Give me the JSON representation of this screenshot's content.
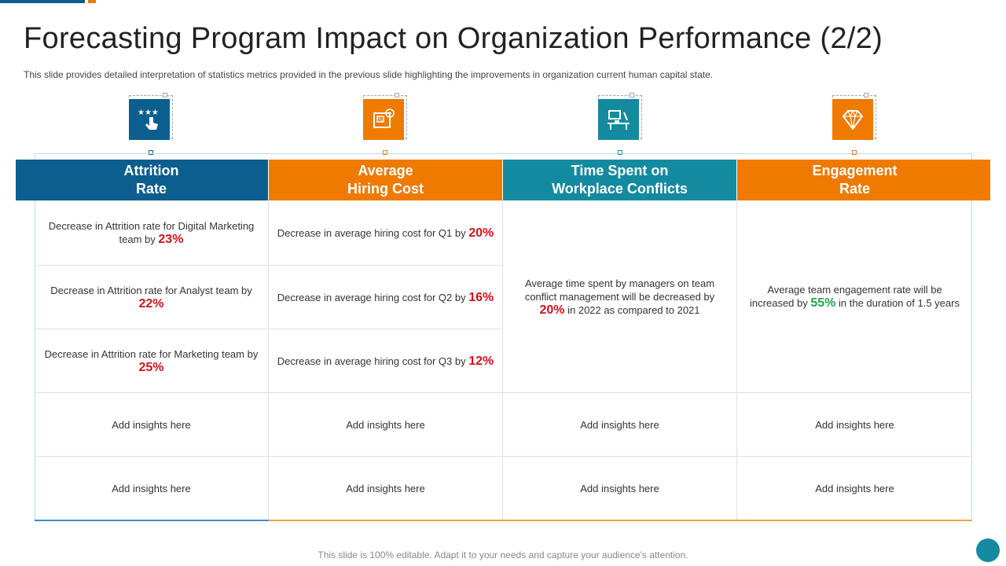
{
  "colors": {
    "blue": "#0b5e8e",
    "orange": "#ee7a00",
    "teal": "#138a9f",
    "red": "#d0121b",
    "green": "#23a24d"
  },
  "page": {
    "title": "Forecasting Program Impact on Organization Performance (2/2)",
    "subtitle": "This slide provides  detailed interpretation  of statistics metrics provided  in the previous  slide highlighting  the improvements  in organization  current  human capital state.",
    "footer": "This slide is 100%  editable. Adapt it to your needs and capture your audience's attention."
  },
  "columns": [
    {
      "header": "Attrition\nRate",
      "icon": "star-rating-hand-icon",
      "color": "#0b5e8e"
    },
    {
      "header": "Average\nHiring Cost",
      "icon": "cost-document-icon",
      "color": "#ee7a00"
    },
    {
      "header": "Time Spent on\nWorkplace Conflicts",
      "icon": "workplace-desk-icon",
      "color": "#138a9f"
    },
    {
      "header": "Engagement\nRate",
      "icon": "diamond-icon",
      "color": "#ee7a00"
    }
  ],
  "attrition": [
    {
      "text": "Decrease in Attrition rate for Digital Marketing team by ",
      "pct": "23%"
    },
    {
      "text": "Decrease in Attrition rate for Analyst team by ",
      "pct": "22%"
    },
    {
      "text": "Decrease in Attrition rate for Marketing team by ",
      "pct": "25%"
    }
  ],
  "hiring": [
    {
      "text": "Decrease in average  hiring cost for Q1 by ",
      "pct": "20%"
    },
    {
      "text": "Decrease in average  hiring cost for Q2 by ",
      "pct": "16%"
    },
    {
      "text": "Decrease in average  hiring cost for Q3 by ",
      "pct": "12%"
    }
  ],
  "conflicts": {
    "pre": "Average  time spent by managers  on team conflict management  will be decreased by ",
    "pct": "20%",
    "post": " in 2022 as compared  to 2021"
  },
  "engagement": {
    "pre": "Average  team engagement  rate will be increased by ",
    "pct": "55%",
    "post": " in the duration of 1.5 years"
  },
  "insights": {
    "row1": [
      "Add insights here",
      "Add insights here",
      "Add insights here",
      "Add insights here"
    ],
    "row2": [
      "Add insights here",
      "Add insights here",
      "Add insights here",
      "Add insights here"
    ]
  }
}
